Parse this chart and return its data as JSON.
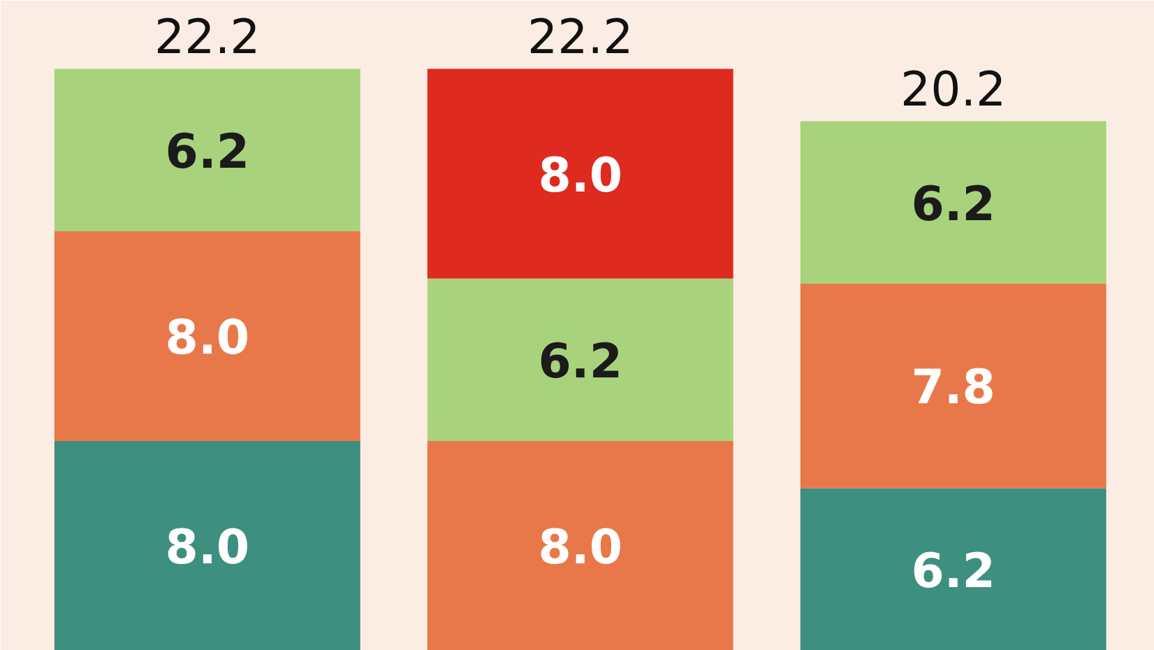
{
  "chart_data": {
    "type": "bar",
    "stacked": true,
    "categories": [
      null,
      null,
      null
    ],
    "series": [
      {
        "color": "#3d8f7f",
        "values": [
          8.0,
          null,
          6.2
        ],
        "value_labels": [
          "8.0",
          null,
          "6.2"
        ]
      },
      {
        "color": "#e8784a",
        "values": [
          8.0,
          8.0,
          7.8
        ],
        "value_labels": [
          "8.0",
          "8.0",
          "7.8"
        ]
      },
      {
        "color": "#a9d27c",
        "values": [
          6.2,
          6.2,
          6.2
        ],
        "value_labels": [
          "6.2",
          "6.2",
          "6.2"
        ]
      },
      {
        "color": "#de2a1f",
        "values": [
          null,
          8.0,
          null
        ],
        "value_labels": [
          null,
          "8.0",
          null
        ]
      }
    ],
    "totals": [
      "22.2",
      "22.2",
      "20.2"
    ]
  }
}
